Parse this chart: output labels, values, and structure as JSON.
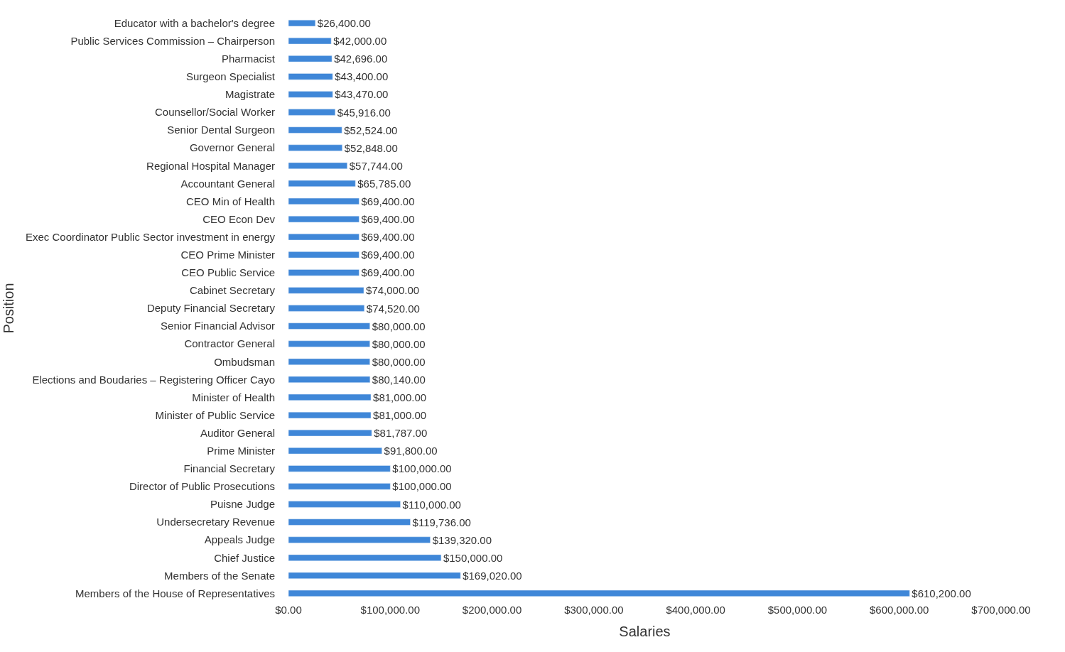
{
  "chart_data": {
    "type": "bar",
    "orientation": "horizontal",
    "xlabel": "Salaries",
    "ylabel": "Position",
    "color": "#3f87d8",
    "categories": [
      "Educator with a bachelor's degree",
      "Public Services Commission – Chairperson",
      "Pharmacist",
      "Surgeon Specialist",
      "Magistrate",
      "Counsellor/Social Worker",
      "Senior Dental Surgeon",
      "Governor General",
      "Regional Hospital Manager",
      "Accountant General",
      "CEO Min of Health",
      "CEO Econ Dev",
      "Exec Coordinator Public Sector investment in energy",
      "CEO Prime Minister",
      "CEO Public Service",
      "Cabinet Secretary",
      "Deputy Financial Secretary",
      "Senior Financial Advisor",
      "Contractor General",
      "Ombudsman",
      "Elections and Boudaries – Registering Officer Cayo",
      "Minister of Health",
      "Minister of Public Service",
      "Auditor General",
      "Prime Minister",
      "Financial Secretary",
      "Director of Public Prosecutions",
      "Puisne Judge",
      "Undersecretary Revenue",
      "Appeals Judge",
      "Chief Justice",
      "Members of the Senate",
      "Members of the House of Representatives"
    ],
    "values": [
      26400,
      42000,
      42696,
      43400,
      43470,
      45916,
      52524,
      52848,
      57744,
      65785,
      69400,
      69400,
      69400,
      69400,
      69400,
      74000,
      74520,
      80000,
      80000,
      80000,
      80140,
      81000,
      81000,
      81787,
      91800,
      100000,
      100000,
      110000,
      119736,
      139320,
      150000,
      169020,
      610200
    ],
    "value_labels": [
      "$26,400.00",
      "$42,000.00",
      "$42,696.00",
      "$43,400.00",
      "$43,470.00",
      "$45,916.00",
      "$52,524.00",
      "$52,848.00",
      "$57,744.00",
      "$65,785.00",
      "$69,400.00",
      "$69,400.00",
      "$69,400.00",
      "$69,400.00",
      "$69,400.00",
      "$74,000.00",
      "$74,520.00",
      "$80,000.00",
      "$80,000.00",
      "$80,000.00",
      "$80,140.00",
      "$81,000.00",
      "$81,000.00",
      "$81,787.00",
      "$91,800.00",
      "$100,000.00",
      "$100,000.00",
      "$110,000.00",
      "$119,736.00",
      "$139,320.00",
      "$150,000.00",
      "$169,020.00",
      "$610,200.00"
    ],
    "xlim": [
      0,
      700000
    ],
    "xticks": [
      {
        "value": 0,
        "label": "$0.00"
      },
      {
        "value": 100000,
        "label": "$100,000.00"
      },
      {
        "value": 200000,
        "label": "$200,000.00"
      },
      {
        "value": 300000,
        "label": "$300,000.00"
      },
      {
        "value": 400000,
        "label": "$400,000.00"
      },
      {
        "value": 500000,
        "label": "$500,000.00"
      },
      {
        "value": 600000,
        "label": "$600,000.00"
      },
      {
        "value": 700000,
        "label": "$700,000.00"
      }
    ]
  }
}
